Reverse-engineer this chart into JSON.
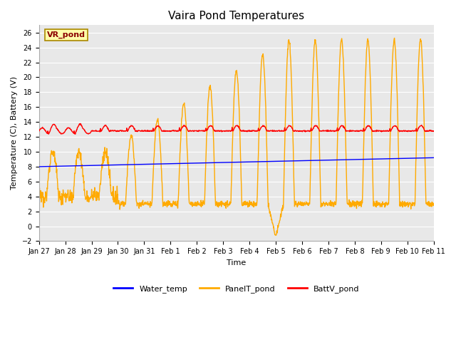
{
  "title": "Vaira Pond Temperatures",
  "xlabel": "Time",
  "ylabel": "Temperature (C), Battery (V)",
  "ylim": [
    -2,
    27
  ],
  "yticks": [
    -2,
    0,
    2,
    4,
    6,
    8,
    10,
    12,
    14,
    16,
    18,
    20,
    22,
    24,
    26
  ],
  "xtick_labels": [
    "Jan 27",
    "Jan 28",
    "Jan 29",
    "Jan 30",
    "Jan 31",
    "Feb 1",
    "Feb 2",
    "Feb 3",
    "Feb 4",
    "Feb 5",
    "Feb 6",
    "Feb 7",
    "Feb 8",
    "Feb 9",
    "Feb 10",
    "Feb 11"
  ],
  "annotation_text": "VR_pond",
  "water_color": "#0000ff",
  "panel_color": "#ffaa00",
  "batt_color": "#ff0000",
  "plot_bg": "#e8e8e8",
  "fig_bg": "#ffffff",
  "legend_labels": [
    "Water_temp",
    "PanelT_pond",
    "BattV_pond"
  ],
  "line_width": 1.0,
  "n_days": 15,
  "title_fontsize": 11,
  "label_fontsize": 8,
  "tick_fontsize": 7
}
